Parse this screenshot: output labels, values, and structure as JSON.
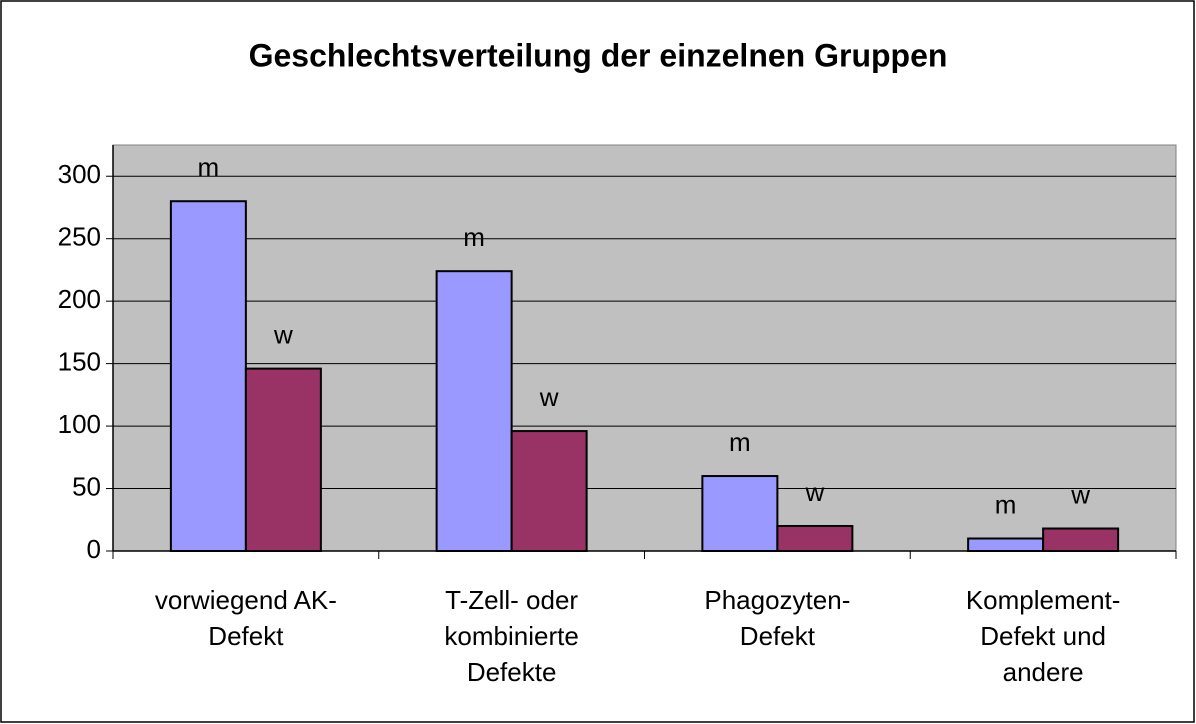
{
  "chart_data": {
    "type": "bar",
    "title": "Geschlechtsverteilung der einzelnen Gruppen",
    "categories": [
      "vorwiegend AK-\nDefekt",
      "T-Zell- oder\nkombinierte\nDefekte",
      "Phagozyten-\nDefekt",
      "Komplement-\nDefekt und\nandere"
    ],
    "series": [
      {
        "name": "m",
        "color": "#9999ff",
        "values": [
          280,
          224,
          60,
          10
        ]
      },
      {
        "name": "w",
        "color": "#993366",
        "values": [
          146,
          96,
          20,
          18
        ]
      }
    ],
    "ylim": [
      0,
      325
    ],
    "yticks": [
      0,
      50,
      100,
      150,
      200,
      250,
      300
    ],
    "grid": true
  }
}
